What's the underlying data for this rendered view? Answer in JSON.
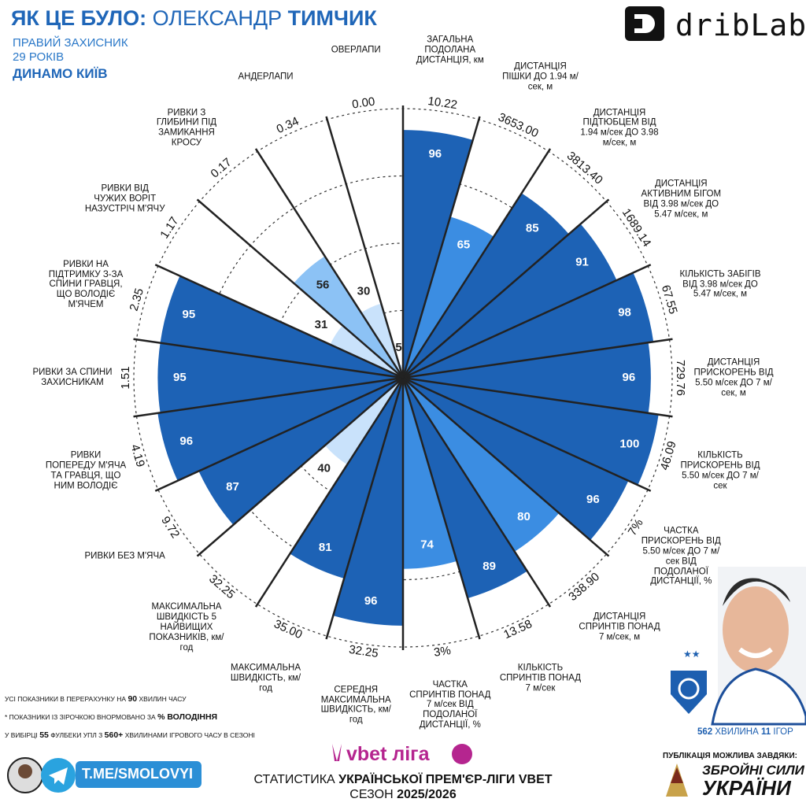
{
  "header": {
    "title_parts": [
      "ЯК ЦЕ БУЛО:",
      "ОЛЕКСАНДР",
      "ТИМЧИК"
    ],
    "position": "ПРАВИЙ ЗАХИСНИК",
    "age": "29 РОКІВ",
    "club": "ДИНАМО КИЇВ",
    "brand": "dribLab"
  },
  "chart_data": {
    "type": "pizza",
    "categories": [
      "ЗАГАЛЬНА ПОДОЛАНА ДИСТАНЦІЯ, км",
      "ДИСТАНЦІЯ ПІШКИ ДО 1.94 м/сек, м",
      "ДИСТАНЦІЯ ПІДТЮБЦЕМ ВІД 1.94 м/сек ДО 3.98 м/сек, м",
      "ДИСТАНЦІЯ АКТИВНИМ БІГОМ ВІД 3.98 м/сек ДО 5.47 м/сек, м",
      "КІЛЬКІСТЬ ЗАБІГІВ ВІД 3.98 м/сек ДО 5.47 м/сек, м",
      "ДИСТАНЦІЯ ПРИСКОРЕНЬ ВІД 5.50 м/сек ДО 7 м/сек, м",
      "КІЛЬКІСТЬ ПРИСКОРЕНЬ ВІД 5.50 м/сек ДО 7 м/сек",
      "ЧАСТКА ПРИСКОРЕНЬ ВІД 5.50 м/сек ДО 7 м/сек ВІД ПОДОЛАНОЇ ДИСТАНЦІЇ, %",
      "ДИСТАНЦІЯ СПРИНТІВ ПОНАД 7 м/сек, м",
      "КІЛЬКІСТЬ СПРИНТІВ ПОНАД 7 м/сек",
      "ЧАСТКА СПРИНТІВ ПОНАД 7 м/сек ВІД ПОДОЛАНОЇ ДИСТАНЦІЇ, %",
      "СЕРЕДНЯ МАКСИМАЛЬНА ШВИДКІСТЬ, км/год",
      "МАКСИМАЛЬНА ШВИДКІСТЬ, км/год",
      "МАКСИМАЛЬНА ШВИДКІСТЬ 5 НАЙВИЩИХ ПОКАЗНИКІВ, км/год",
      "РИВКИ БЕЗ М'ЯЧА",
      "РИВКИ ПОПЕРЕДУ М'ЯЧА ТА ГРАВЦЯ, ЩО НИМ ВОЛОДІЄ",
      "РИВКИ ЗА СПИНИ ЗАХИСНИКАМ",
      "РИВКИ НА ПІДТРИМКУ З-ЗА СПИНИ ГРАВЦЯ, ЩО ВОЛОДІЄ М'ЯЧЕМ",
      "РИВКИ ВІД ЧУЖИХ ВОРІТ НАЗУСТРІЧ М'ЯЧУ",
      "РИВКИ З ГЛИБИНИ ПІД ЗАМИКАННЯ КРОСУ",
      "АНДЕРЛАПИ",
      "ОВЕРЛАПИ"
    ],
    "values": [
      96,
      65,
      85,
      91,
      98,
      96,
      100,
      96,
      80,
      89,
      74,
      96,
      81,
      40,
      87,
      96,
      95,
      95,
      31,
      56,
      30,
      5
    ],
    "raw_labels": [
      "10.22",
      "3653.00",
      "3813.40",
      "1689.14",
      "67.55",
      "729.76",
      "46.09",
      "7%",
      "338.90",
      "13.58",
      "3%",
      "32.25",
      "35.00",
      "32.25",
      "9.72",
      "4.19",
      "1.51",
      "2.35",
      "1.17",
      "0.17",
      "0.34",
      "0.00"
    ],
    "colors": [
      "#1d62b5",
      "#3b8de2",
      "#1d62b5",
      "#1d62b5",
      "#1d62b5",
      "#1d62b5",
      "#1d62b5",
      "#1d62b5",
      "#3b8de2",
      "#1d62b5",
      "#3b8de2",
      "#1d62b5",
      "#1d62b5",
      "#c9e2fb",
      "#1d62b5",
      "#1d62b5",
      "#1d62b5",
      "#1d62b5",
      "#c9e2fb",
      "#8cc2f5",
      "#c9e2fb",
      "#c9e2fb"
    ],
    "rlim": [
      0,
      100
    ]
  },
  "notes": {
    "per90": [
      "УСІ ПОКАЗНИКИ В ПЕРЕРАХУНКУ НА",
      "90",
      "ХВИЛИН ЧАСУ"
    ],
    "possession": [
      "* ПОКАЗНИКИ ІЗ ЗІРОЧКОЮ ВНОРМОВАНО ЗА",
      "% ВОЛОДІННЯ"
    ],
    "sample": [
      "У ВИБІРЦІ",
      "55",
      "ФУЛБЕКИ УПЛ З",
      "560+",
      "ХВИЛИНАМИ ІГРОВОГО ЧАСУ В СЕЗОНІ"
    ]
  },
  "footer": {
    "league_logo": "vbet ліга",
    "stats_parts": [
      "СТАТИСТИКА",
      "УКРАЇНСЬКОЇ ПРЕМ'ЄР-ЛІГИ VBET"
    ],
    "season_parts": [
      "СЕЗОН",
      "2025/2026"
    ],
    "telegram": "T.ME/SMOLOVYI",
    "minutes_parts": [
      "562",
      "ХВИЛИНА",
      "11",
      "ІГОР"
    ],
    "sponsor_caption": "ПУБЛІКАЦІЯ МОЖЛИВА ЗАВДЯКИ:",
    "sponsor_lines": [
      "ЗБРОЙНІ СИЛИ",
      "УКРАЇНИ"
    ]
  }
}
